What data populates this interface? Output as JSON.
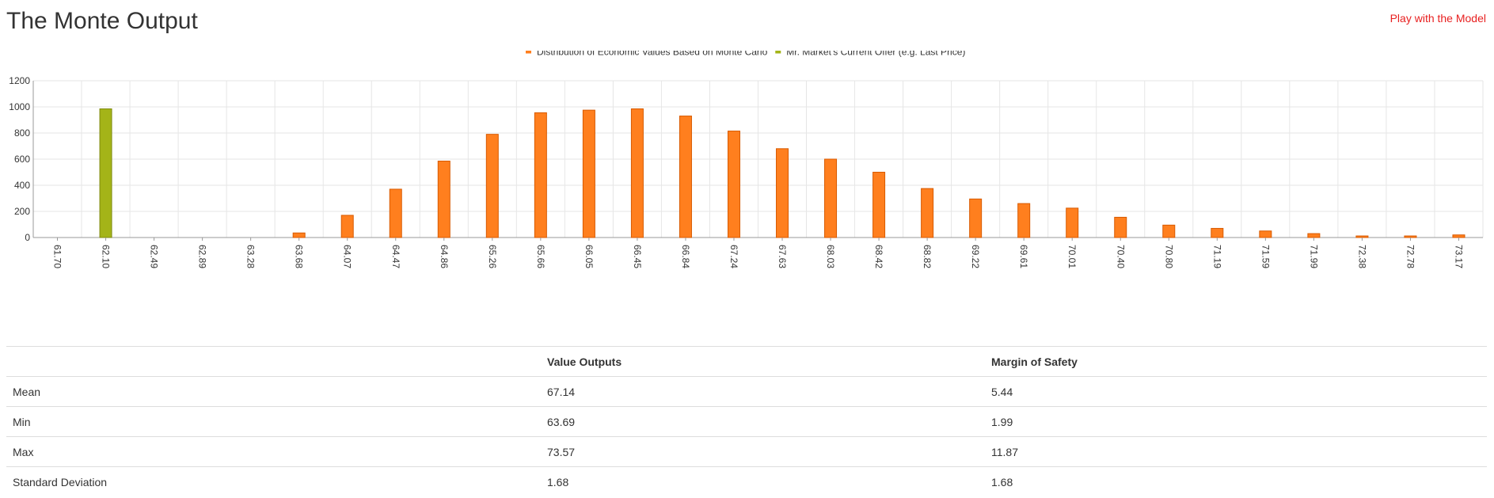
{
  "page": {
    "title": "The Monte Output",
    "play_link": "Play with the Model"
  },
  "chart_data": {
    "type": "bar",
    "title": "",
    "xlabel": "",
    "ylabel": "",
    "ylim": [
      0,
      1200
    ],
    "yticks": [
      0,
      200,
      400,
      600,
      800,
      1000,
      1200
    ],
    "grid": true,
    "legend_position": "top-center",
    "categories": [
      "61.70",
      "62.10",
      "62.49",
      "62.89",
      "63.28",
      "63.68",
      "64.07",
      "64.47",
      "64.86",
      "65.26",
      "65.66",
      "66.05",
      "66.45",
      "66.84",
      "67.24",
      "67.63",
      "68.03",
      "68.42",
      "68.82",
      "69.22",
      "69.61",
      "70.01",
      "70.40",
      "70.80",
      "71.19",
      "71.59",
      "71.99",
      "72.38",
      "72.78",
      "73.17"
    ],
    "series": [
      {
        "name": "Distribution of Economic Values Based on Monte Carlo",
        "color": "#ff7f1e",
        "values": [
          0,
          0,
          0,
          0,
          0,
          35,
          170,
          370,
          585,
          790,
          955,
          975,
          985,
          930,
          815,
          680,
          600,
          500,
          375,
          295,
          260,
          225,
          155,
          95,
          70,
          50,
          30,
          12,
          12,
          20
        ]
      },
      {
        "name": "Mr. Market's Current Offer (e.g. Last Price)",
        "color": "#a4b418",
        "values": [
          0,
          985,
          0,
          0,
          0,
          0,
          0,
          0,
          0,
          0,
          0,
          0,
          0,
          0,
          0,
          0,
          0,
          0,
          0,
          0,
          0,
          0,
          0,
          0,
          0,
          0,
          0,
          0,
          0,
          0
        ]
      }
    ]
  },
  "stats": {
    "headers": [
      "",
      "Value Outputs",
      "Margin of Safety"
    ],
    "rows": [
      [
        "Mean",
        "67.14",
        "5.44"
      ],
      [
        "Min",
        "63.69",
        "1.99"
      ],
      [
        "Max",
        "73.57",
        "11.87"
      ],
      [
        "Standard Deviation",
        "1.68",
        "1.68"
      ]
    ]
  }
}
